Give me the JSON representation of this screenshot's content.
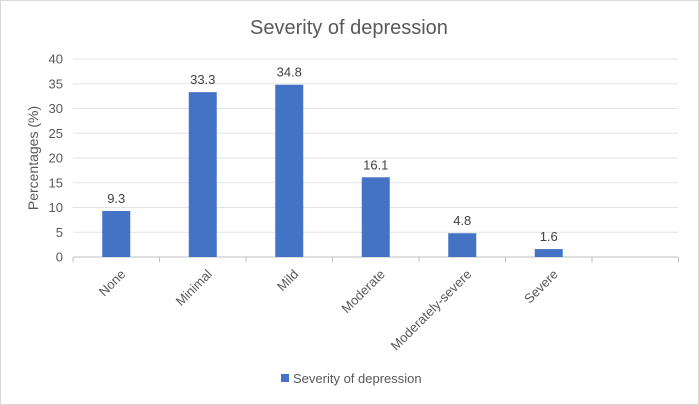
{
  "chart_data": {
    "type": "bar",
    "title": "Severity of depression",
    "categories": [
      "None",
      "Minimal",
      "Mild",
      "Moderate",
      "Moderately-severe",
      "Severe"
    ],
    "series": [
      {
        "name": "Severity of depression",
        "values": [
          9.3,
          33.3,
          34.8,
          16.1,
          4.8,
          1.6
        ]
      }
    ],
    "data_labels": [
      "9.3",
      "33.3",
      "34.8",
      "16.1",
      "4.8",
      "1.6"
    ],
    "ylabel": "Percentages (%)",
    "xlabel": "",
    "ylim": [
      0,
      40
    ],
    "yticks": [
      "0",
      "5",
      "10",
      "15",
      "20",
      "25",
      "30",
      "35",
      "40"
    ],
    "legend": "bottom",
    "bar_color": "#4472c4"
  }
}
